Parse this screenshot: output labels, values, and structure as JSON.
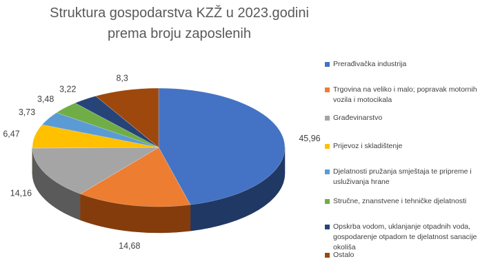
{
  "chart_data": {
    "type": "pie",
    "variant": "3d",
    "title": "Struktura gospodarstva KZŽ u 2023.godini prema broju zaposlenih",
    "legend_position": "right",
    "slices": [
      {
        "name": "Prerađivačka industrija",
        "value": 45.96,
        "label": "45,96",
        "color": "#4472C4",
        "dark": "#203864"
      },
      {
        "name": "Trgovina na veliko i malo; popravak motornih vozila i motocikala",
        "value": 14.68,
        "label": "14,68",
        "color": "#ED7D31",
        "dark": "#843C0C"
      },
      {
        "name": "Građevinarstvo",
        "value": 14.16,
        "label": "14,16",
        "color": "#A5A5A5",
        "dark": "#5A5A5A"
      },
      {
        "name": "Prijevoz i skladištenje",
        "value": 6.47,
        "label": "6,47",
        "color": "#FFC000",
        "dark": "#8C6A00"
      },
      {
        "name": "Djelatnosti pružanja smještaja te pripreme i usluživanja hrane",
        "value": 3.73,
        "label": "3,73",
        "color": "#5B9BD5",
        "dark": "#2E5A85"
      },
      {
        "name": "Stručne, znanstvene i tehničke djelatnosti",
        "value": 3.48,
        "label": "3,48",
        "color": "#70AD47",
        "dark": "#3A6224"
      },
      {
        "name": "Opskrba vodom, uklanjanje otpadnih voda, gospodarenje otpadom te djelatnost sanacije okoliša",
        "value": 3.22,
        "label": "3,22",
        "color": "#264478",
        "dark": "#13223C"
      },
      {
        "name": "Ostalo",
        "value": 8.3,
        "label": "8,3",
        "color": "#9E480E",
        "dark": "#5A2808"
      }
    ]
  }
}
